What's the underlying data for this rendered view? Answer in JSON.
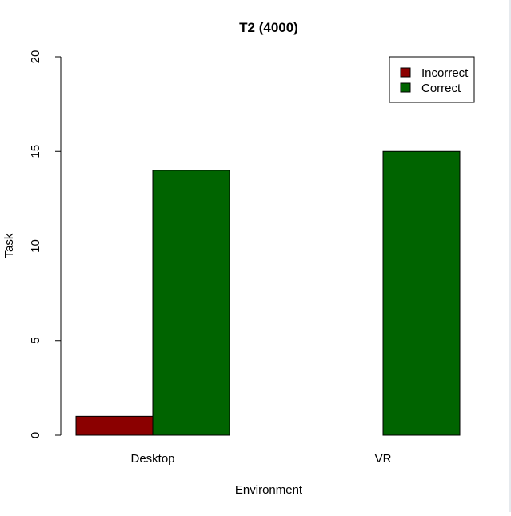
{
  "chart_data": {
    "type": "bar",
    "title": "T2 (4000)",
    "xlabel": "Environment",
    "ylabel": "Task",
    "categories": [
      "Desktop",
      "VR"
    ],
    "series": [
      {
        "name": "Incorrect",
        "values": [
          1,
          0
        ],
        "color": "#8b0000"
      },
      {
        "name": "Correct",
        "values": [
          14,
          15
        ],
        "color": "#006400"
      }
    ],
    "ylim": [
      0,
      20
    ],
    "yticks": [
      "0",
      "5",
      "10",
      "15",
      "20"
    ],
    "grid": false,
    "legend_position": "top-right",
    "bar_mode": "grouped"
  }
}
